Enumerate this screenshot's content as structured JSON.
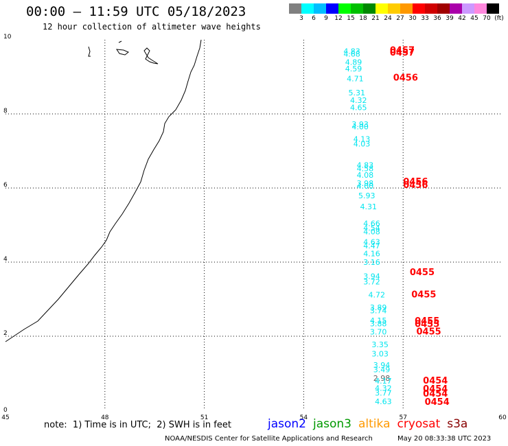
{
  "header": {
    "title": "00:00 – 11:59 UTC 05/18/2023",
    "subtitle": "12 hour collection of altimeter wave heights"
  },
  "colorbar": {
    "colors": [
      "#808080",
      "#00ffff",
      "#00bfff",
      "#0000ff",
      "#00ff00",
      "#00c000",
      "#008800",
      "#ffff00",
      "#ffcc00",
      "#ff9900",
      "#ff0000",
      "#d00000",
      "#a00000",
      "#aa00aa",
      "#cc99ff",
      "#ff88dd",
      "#000000"
    ],
    "ticks": [
      "3",
      "6",
      "9",
      "12",
      "15",
      "18",
      "21",
      "24",
      "27",
      "30",
      "33",
      "36",
      "39",
      "42",
      "45",
      "70"
    ],
    "unit": "(ft)"
  },
  "axes": {
    "x_ticks": [
      "45",
      "48",
      "51",
      "54",
      "57",
      "60"
    ],
    "y_ticks": [
      "0",
      "2",
      "4",
      "6",
      "8",
      "10"
    ],
    "x_range": [
      45,
      60
    ],
    "y_range": [
      0,
      10
    ]
  },
  "observations": [
    {
      "lon": 55.2,
      "lat": 9.62,
      "swh": "4.83",
      "color": "#00e5ee"
    },
    {
      "lon": 55.2,
      "lat": 9.55,
      "swh": "4.68",
      "color": "#00e5ee"
    },
    {
      "lon": 55.25,
      "lat": 9.32,
      "swh": "4.89",
      "color": "#00e5ee"
    },
    {
      "lon": 55.25,
      "lat": 9.15,
      "swh": "4.59",
      "color": "#00e5ee"
    },
    {
      "lon": 55.3,
      "lat": 8.88,
      "swh": "4.71",
      "color": "#00e5ee"
    },
    {
      "lon": 55.35,
      "lat": 8.5,
      "swh": "5.31",
      "color": "#00e5ee"
    },
    {
      "lon": 55.4,
      "lat": 8.3,
      "swh": "4.32",
      "color": "#00e5ee"
    },
    {
      "lon": 55.4,
      "lat": 8.1,
      "swh": "4.65",
      "color": "#00e5ee"
    },
    {
      "lon": 55.45,
      "lat": 7.65,
      "swh": "3.93",
      "color": "#00e5ee"
    },
    {
      "lon": 55.45,
      "lat": 7.58,
      "swh": "4.00",
      "color": "#00e5ee"
    },
    {
      "lon": 55.5,
      "lat": 7.25,
      "swh": "4.13",
      "color": "#00e5ee"
    },
    {
      "lon": 55.5,
      "lat": 7.12,
      "swh": "4.03",
      "color": "#00e5ee"
    },
    {
      "lon": 55.6,
      "lat": 6.55,
      "swh": "4.83",
      "color": "#00e5ee"
    },
    {
      "lon": 55.6,
      "lat": 6.45,
      "swh": "4.58",
      "color": "#00e5ee"
    },
    {
      "lon": 55.6,
      "lat": 6.28,
      "swh": "4.08",
      "color": "#00e5ee"
    },
    {
      "lon": 55.6,
      "lat": 6.06,
      "swh": "3.98",
      "color": "#00e5ee"
    },
    {
      "lon": 55.6,
      "lat": 5.98,
      "swh": "4.00",
      "color": "#00e5ee"
    },
    {
      "lon": 55.65,
      "lat": 5.72,
      "swh": "5.93",
      "color": "#00e5ee"
    },
    {
      "lon": 55.7,
      "lat": 5.43,
      "swh": "4.31",
      "color": "#00e5ee"
    },
    {
      "lon": 55.8,
      "lat": 4.97,
      "swh": "4.66",
      "color": "#00e5ee"
    },
    {
      "lon": 55.8,
      "lat": 4.85,
      "swh": "4.54",
      "color": "#00e5ee"
    },
    {
      "lon": 55.8,
      "lat": 4.75,
      "swh": "4.08",
      "color": "#00e5ee"
    },
    {
      "lon": 55.8,
      "lat": 4.47,
      "swh": "4.63",
      "color": "#00e5ee"
    },
    {
      "lon": 55.8,
      "lat": 4.37,
      "swh": "4.47",
      "color": "#00e5ee"
    },
    {
      "lon": 55.8,
      "lat": 4.16,
      "swh": "4.16",
      "color": "#00e5ee"
    },
    {
      "lon": 55.8,
      "lat": 3.93,
      "swh": "3.16",
      "color": "#00e5ee"
    },
    {
      "lon": 55.8,
      "lat": 3.55,
      "swh": "3.94",
      "color": "#00e5ee"
    },
    {
      "lon": 55.8,
      "lat": 3.4,
      "swh": "3.72",
      "color": "#00e5ee"
    },
    {
      "lon": 55.95,
      "lat": 3.05,
      "swh": "4.72",
      "color": "#00e5ee"
    },
    {
      "lon": 56.0,
      "lat": 2.7,
      "swh": "3.89",
      "color": "#00e5ee"
    },
    {
      "lon": 56.0,
      "lat": 2.62,
      "swh": "3.74",
      "color": "#00e5ee"
    },
    {
      "lon": 56.0,
      "lat": 2.35,
      "swh": "4.15",
      "color": "#00e5ee"
    },
    {
      "lon": 56.0,
      "lat": 2.27,
      "swh": "3.88",
      "color": "#00e5ee"
    },
    {
      "lon": 56.0,
      "lat": 2.05,
      "swh": "3.70",
      "color": "#00e5ee"
    },
    {
      "lon": 56.05,
      "lat": 1.7,
      "swh": "3.35",
      "color": "#00e5ee"
    },
    {
      "lon": 56.05,
      "lat": 1.45,
      "swh": "3.03",
      "color": "#00e5ee"
    },
    {
      "lon": 56.1,
      "lat": 1.15,
      "swh": "3.94",
      "color": "#00e5ee"
    },
    {
      "lon": 56.1,
      "lat": 1.03,
      "swh": "3.49",
      "color": "#00e5ee"
    },
    {
      "lon": 56.1,
      "lat": 0.8,
      "swh": "2.98",
      "color": "#606060"
    },
    {
      "lon": 56.15,
      "lat": 0.72,
      "swh": "4.17",
      "color": "#00e5ee"
    },
    {
      "lon": 56.15,
      "lat": 0.53,
      "swh": "4.32",
      "color": "#00e5ee"
    },
    {
      "lon": 56.15,
      "lat": 0.4,
      "swh": "3.77",
      "color": "#00e5ee"
    },
    {
      "lon": 56.15,
      "lat": 0.17,
      "swh": "4.63",
      "color": "#00e5ee"
    }
  ],
  "pass_times": [
    {
      "lon": 56.6,
      "lat": 9.64,
      "time": "0457"
    },
    {
      "lon": 56.6,
      "lat": 9.57,
      "time": "0457"
    },
    {
      "lon": 56.7,
      "lat": 8.9,
      "time": "0456"
    },
    {
      "lon": 57.0,
      "lat": 6.09,
      "time": "0456"
    },
    {
      "lon": 57.0,
      "lat": 6.0,
      "time": "0456"
    },
    {
      "lon": 57.2,
      "lat": 3.65,
      "time": "0455"
    },
    {
      "lon": 57.25,
      "lat": 3.05,
      "time": "0455"
    },
    {
      "lon": 57.35,
      "lat": 2.33,
      "time": "0455"
    },
    {
      "lon": 57.35,
      "lat": 2.25,
      "time": "0455"
    },
    {
      "lon": 57.4,
      "lat": 2.05,
      "time": "0455"
    },
    {
      "lon": 57.6,
      "lat": 0.72,
      "time": "0454"
    },
    {
      "lon": 57.6,
      "lat": 0.5,
      "time": "0454"
    },
    {
      "lon": 57.6,
      "lat": 0.37,
      "time": "0454"
    },
    {
      "lon": 57.65,
      "lat": 0.15,
      "time": "0454"
    }
  ],
  "time_color": "#ff0000",
  "footer": {
    "note": "note:  1) Time is in UTC;  2) SWH is in feet",
    "satellites": [
      {
        "name": "jason2",
        "color": "#0000ff"
      },
      {
        "name": "jason3",
        "color": "#009900"
      },
      {
        "name": "altika",
        "color": "#ff9900"
      },
      {
        "name": "cryosat",
        "color": "#ff0000"
      },
      {
        "name": "s3a",
        "color": "#880000"
      }
    ],
    "credit": "NOAA/NESDIS Center for Satellite Applications and Research",
    "timestamp": "May 20 08:33:38 UTC 2023"
  }
}
